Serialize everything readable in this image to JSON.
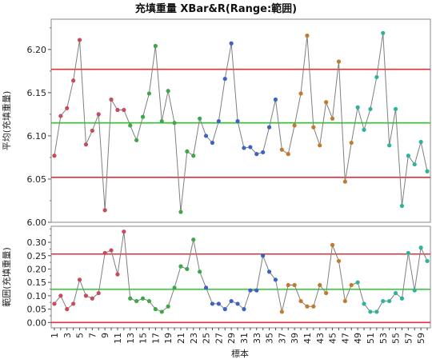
{
  "chart_data": {
    "type": "line",
    "title": "充填重量  XBar&R(Range:範囲)",
    "xlabel": "標本",
    "x": [
      1,
      2,
      3,
      4,
      5,
      6,
      7,
      8,
      9,
      10,
      11,
      12,
      13,
      14,
      15,
      16,
      17,
      18,
      19,
      20,
      21,
      22,
      23,
      24,
      25,
      26,
      27,
      28,
      29,
      30,
      31,
      32,
      33,
      34,
      35,
      36,
      37,
      38,
      39,
      40,
      41,
      42,
      43,
      44,
      45,
      46,
      47,
      48,
      49,
      50,
      51,
      52,
      53,
      54,
      55,
      56,
      57,
      58,
      59,
      60
    ],
    "x_tick_labels": [
      "1",
      "3",
      "5",
      "7",
      "9",
      "11",
      "13",
      "15",
      "17",
      "19",
      "21",
      "23",
      "25",
      "27",
      "29",
      "31",
      "33",
      "35",
      "37",
      "39",
      "41",
      "43",
      "45",
      "47",
      "49",
      "51",
      "53",
      "55",
      "57",
      "59"
    ],
    "groups": [
      {
        "color": "#c94a5e",
        "from": 1,
        "to": 12
      },
      {
        "color": "#3fa64a",
        "from": 13,
        "to": 24
      },
      {
        "color": "#3b63c4",
        "from": 25,
        "to": 36
      },
      {
        "color": "#c27a2c",
        "from": 37,
        "to": 48
      },
      {
        "color": "#2db39a",
        "from": 49,
        "to": 60
      }
    ],
    "line_color": "#7f7f7f",
    "limit_color": "#e0303a",
    "center_color": "#2ec62e",
    "charts": [
      {
        "name": "xbar",
        "ylabel": "平均(充填重量)",
        "ylim": [
          6.0,
          6.235
        ],
        "yticks": [
          6.0,
          6.05,
          6.1,
          6.15,
          6.2
        ],
        "ytick_labels": [
          "6.00",
          "6.05",
          "6.10",
          "6.15",
          "6.20"
        ],
        "ucl": 6.177,
        "center": 6.115,
        "lcl": 6.052,
        "values": [
          6.077,
          6.123,
          6.132,
          6.164,
          6.211,
          6.09,
          6.106,
          6.125,
          6.014,
          6.142,
          6.13,
          6.13,
          6.112,
          6.095,
          6.122,
          6.149,
          6.204,
          6.117,
          6.152,
          6.115,
          6.012,
          6.082,
          6.077,
          6.12,
          6.1,
          6.092,
          6.117,
          6.166,
          6.207,
          6.117,
          6.086,
          6.087,
          6.079,
          6.081,
          6.11,
          6.142,
          6.084,
          6.079,
          6.112,
          6.149,
          6.216,
          6.11,
          6.089,
          6.139,
          6.12,
          6.186,
          6.047,
          6.092,
          6.133,
          6.107,
          6.131,
          6.168,
          6.219,
          6.089,
          6.131,
          6.019,
          6.077,
          6.067,
          6.093,
          6.059
        ]
      },
      {
        "name": "range",
        "ylabel": "範囲(充填重量)",
        "ylim": [
          -0.02,
          0.36
        ],
        "yticks": [
          0.0,
          0.05,
          0.1,
          0.15,
          0.2,
          0.25,
          0.3
        ],
        "ytick_labels": [
          "0.00",
          "0.05",
          "0.10",
          "0.15",
          "0.20",
          "0.25",
          "0.30"
        ],
        "ucl": 0.256,
        "center": 0.124,
        "lcl": 0.0,
        "values": [
          0.07,
          0.1,
          0.05,
          0.07,
          0.16,
          0.1,
          0.09,
          0.11,
          0.26,
          0.27,
          0.18,
          0.34,
          0.09,
          0.08,
          0.09,
          0.08,
          0.05,
          0.04,
          0.06,
          0.13,
          0.21,
          0.2,
          0.31,
          0.19,
          0.13,
          0.07,
          0.07,
          0.05,
          0.08,
          0.07,
          0.05,
          0.12,
          0.12,
          0.25,
          0.19,
          0.16,
          0.04,
          0.14,
          0.14,
          0.08,
          0.06,
          0.06,
          0.14,
          0.11,
          0.29,
          0.23,
          0.08,
          0.14,
          0.15,
          0.07,
          0.04,
          0.04,
          0.08,
          0.08,
          0.11,
          0.09,
          0.26,
          0.12,
          0.28,
          0.23
        ]
      }
    ]
  }
}
